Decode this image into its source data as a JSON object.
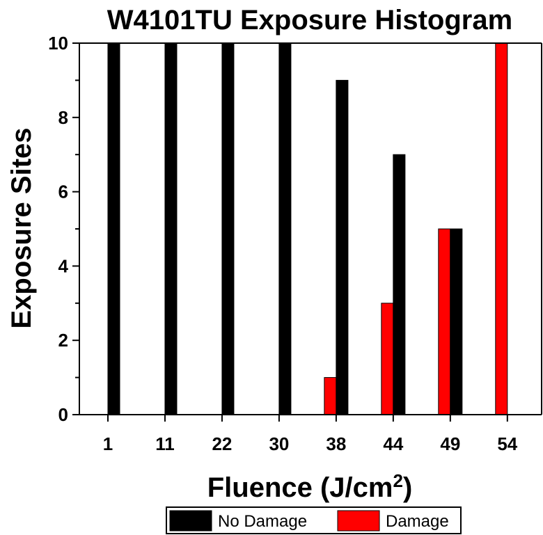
{
  "chart_data": {
    "type": "bar",
    "title": "W4101TU Exposure Histogram",
    "xlabel": "Fluence (J/cm",
    "xlabel_sup": "2",
    "xlabel_suffix": ")",
    "ylabel": "Exposure Sites",
    "categories": [
      "1",
      "11",
      "22",
      "30",
      "38",
      "44",
      "49",
      "54"
    ],
    "series": [
      {
        "name": "Damage",
        "color": "#ff0000",
        "values": [
          0,
          0,
          0,
          0,
          1,
          3,
          5,
          10
        ]
      },
      {
        "name": "No Damage",
        "color": "#000000",
        "values": [
          10,
          10,
          10,
          10,
          9,
          7,
          5,
          0
        ]
      }
    ],
    "ylim": [
      0,
      10
    ],
    "yticks": [
      "0",
      "2",
      "4",
      "6",
      "8",
      "10"
    ],
    "grid": false,
    "legend_placement": "bottom-center",
    "legend": [
      {
        "name": "No Damage",
        "color": "#000000"
      },
      {
        "name": "Damage",
        "color": "#ff0000"
      }
    ]
  }
}
